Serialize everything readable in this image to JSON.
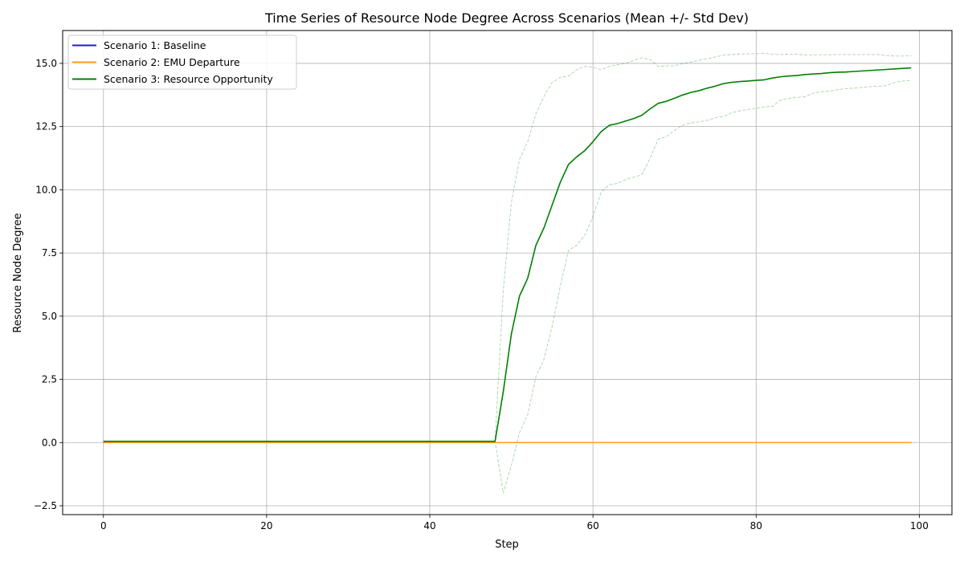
{
  "chart_data": {
    "type": "line",
    "title": "Time Series of Resource Node Degree Across Scenarios (Mean +/- Std Dev)",
    "xlabel": "Step",
    "ylabel": "Resource Node Degree",
    "xlim": [
      -5,
      104
    ],
    "ylim": [
      -2.85,
      16.3
    ],
    "xticks": [
      0,
      20,
      40,
      60,
      80,
      100
    ],
    "yticks": [
      -2.5,
      0.0,
      2.5,
      5.0,
      7.5,
      10.0,
      12.5,
      15.0
    ],
    "xtick_labels": [
      "0",
      "20",
      "40",
      "60",
      "80",
      "100"
    ],
    "ytick_labels": [
      "−2.5",
      "0.0",
      "2.5",
      "5.0",
      "7.5",
      "10.0",
      "12.5",
      "15.0"
    ],
    "grid": true,
    "legend_position": "top-left",
    "series": [
      {
        "name": "Scenario 1: Baseline",
        "color": "#1f1fbf",
        "x": [
          0,
          99
        ],
        "y": [
          0,
          0
        ]
      },
      {
        "name": "Scenario 2: EMU Departure",
        "color": "#ff9f1c",
        "x": [
          0,
          99
        ],
        "y": [
          0,
          0
        ]
      },
      {
        "name": "Scenario 3: Resource Opportunity",
        "color": "#008000",
        "x": [
          0,
          48,
          49,
          50,
          51,
          52,
          53,
          54,
          55,
          56,
          57,
          58,
          59,
          60,
          61,
          62,
          63,
          64,
          65,
          66,
          67,
          68,
          69,
          70,
          71,
          72,
          73,
          74,
          75,
          76,
          77,
          78,
          79,
          80,
          81,
          82,
          83,
          84,
          85,
          86,
          87,
          88,
          89,
          90,
          91,
          92,
          93,
          94,
          95,
          96,
          97,
          98,
          99
        ],
        "y": [
          0.05,
          0.05,
          2.0,
          4.3,
          5.8,
          6.5,
          7.8,
          8.5,
          9.4,
          10.3,
          11.0,
          11.3,
          11.55,
          11.9,
          12.3,
          12.55,
          12.62,
          12.72,
          12.82,
          12.95,
          13.2,
          13.42,
          13.5,
          13.62,
          13.75,
          13.85,
          13.92,
          14.02,
          14.1,
          14.2,
          14.25,
          14.28,
          14.3,
          14.33,
          14.35,
          14.42,
          14.47,
          14.5,
          14.52,
          14.56,
          14.58,
          14.6,
          14.63,
          14.65,
          14.66,
          14.68,
          14.7,
          14.72,
          14.74,
          14.76,
          14.78,
          14.8,
          14.82
        ],
        "upper": [
          0.05,
          0.05,
          6.0,
          9.5,
          11.2,
          11.9,
          13.0,
          13.7,
          14.25,
          14.45,
          14.5,
          14.75,
          14.88,
          14.85,
          14.75,
          14.88,
          14.95,
          15.0,
          15.12,
          15.22,
          15.15,
          14.88,
          14.9,
          14.9,
          15.0,
          15.05,
          15.12,
          15.18,
          15.25,
          15.33,
          15.35,
          15.37,
          15.38,
          15.38,
          15.4,
          15.36,
          15.35,
          15.36,
          15.36,
          15.33,
          15.33,
          15.34,
          15.34,
          15.35,
          15.35,
          15.35,
          15.35,
          15.35,
          15.35,
          15.31,
          15.29,
          15.29,
          15.3
        ],
        "lower": [
          0.05,
          0.05,
          -2.0,
          -0.9,
          0.4,
          1.1,
          2.6,
          3.3,
          4.6,
          6.2,
          7.6,
          7.8,
          8.2,
          8.95,
          9.9,
          10.2,
          10.25,
          10.4,
          10.5,
          10.6,
          11.25,
          12.0,
          12.1,
          12.35,
          12.55,
          12.65,
          12.68,
          12.75,
          12.85,
          12.9,
          13.05,
          13.12,
          13.18,
          13.22,
          13.28,
          13.3,
          13.55,
          13.62,
          13.65,
          13.68,
          13.82,
          13.88,
          13.9,
          13.96,
          14.0,
          14.02,
          14.05,
          14.08,
          14.1,
          14.12,
          14.25,
          14.3,
          14.33
        ]
      }
    ]
  }
}
